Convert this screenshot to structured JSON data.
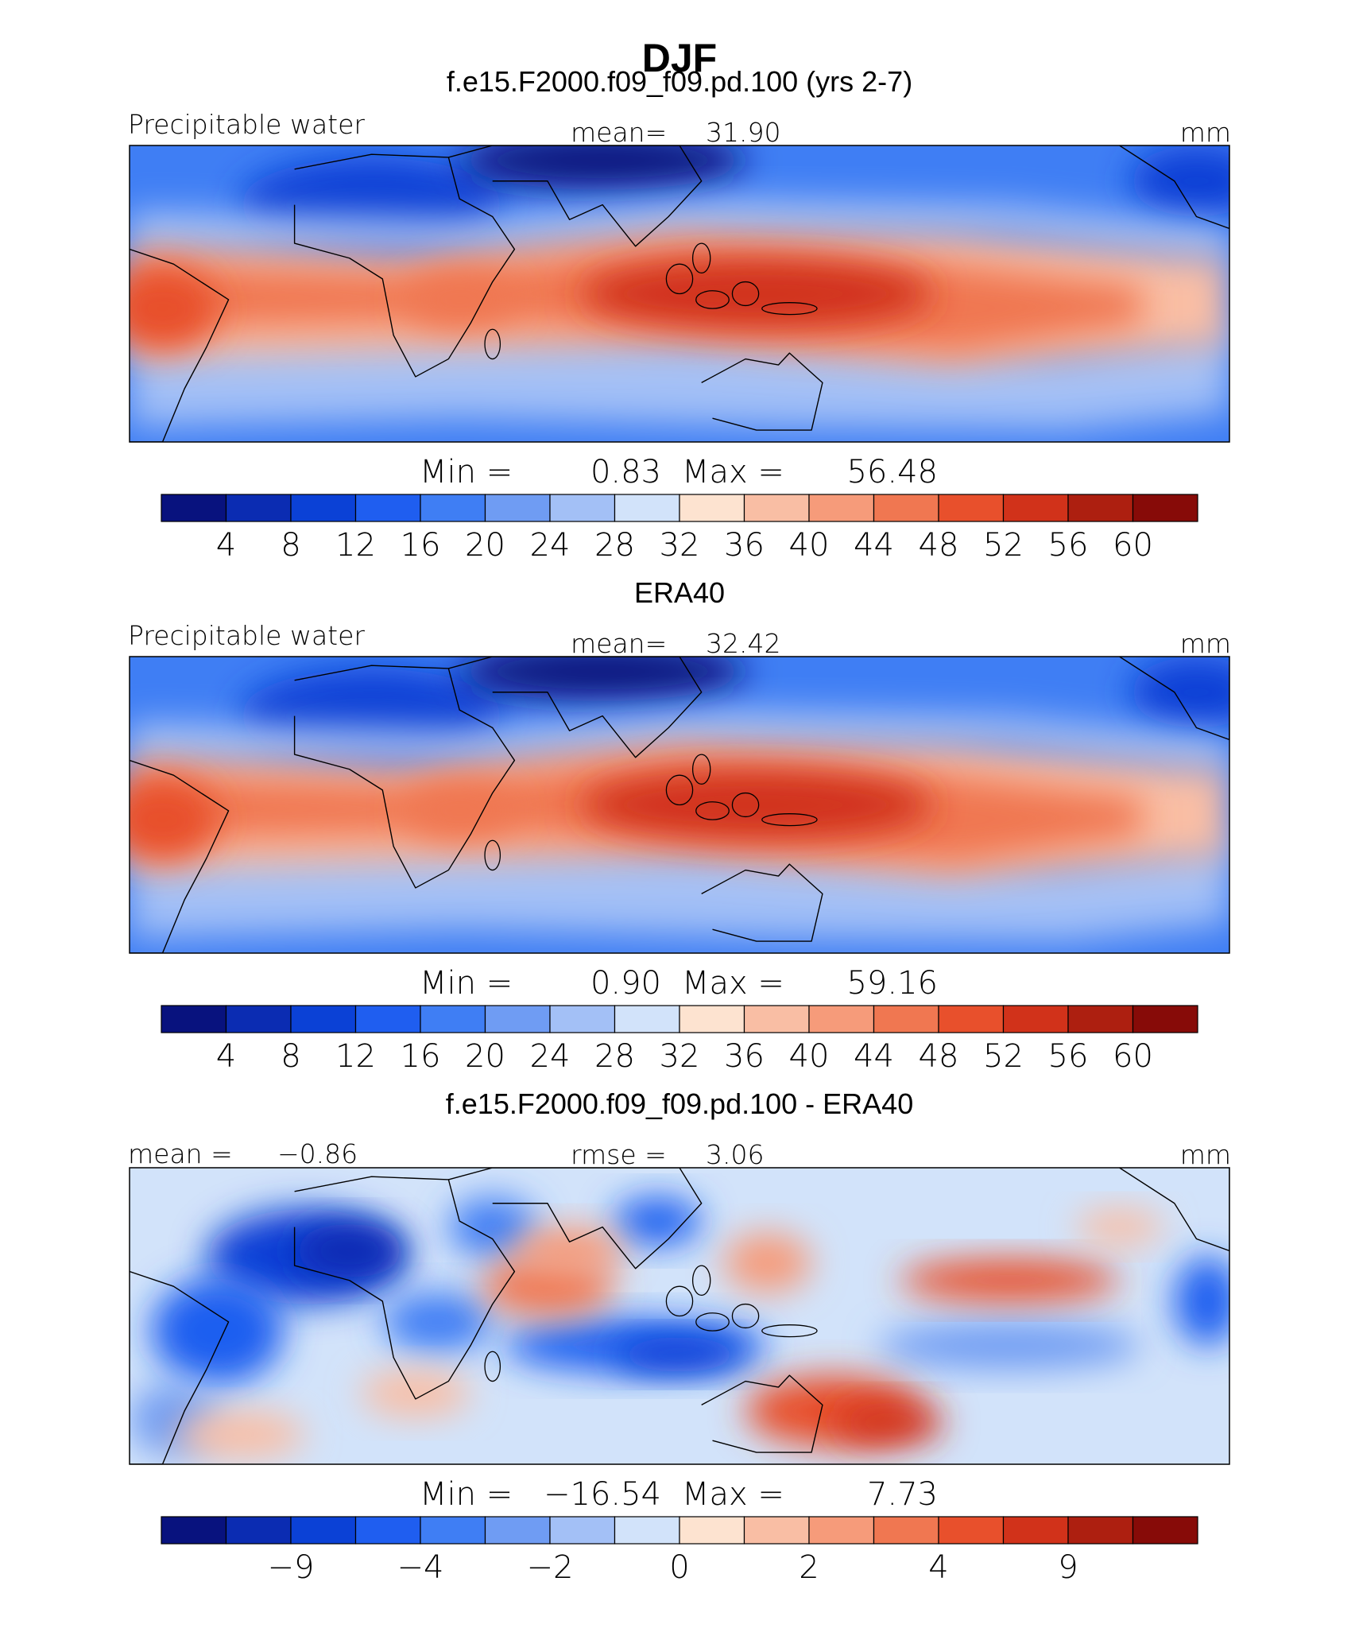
{
  "title": "DJF",
  "chart_data": [
    {
      "type": "heatmap",
      "title": "f.e15.F2000.f09_f09.pd.100 (yrs 2-7)",
      "variable": "Precipitable water",
      "units": "mm",
      "stat_left_label": "",
      "stat_left_value": "",
      "stat_mid_label": "mean=",
      "stat_mid_value": "31.90",
      "min_label": "Min =",
      "min": "0.83",
      "max_label": "Max =",
      "max": "56.48",
      "levels": [
        "4",
        "8",
        "12",
        "16",
        "20",
        "24",
        "28",
        "32",
        "36",
        "40",
        "44",
        "48",
        "52",
        "56",
        "60"
      ],
      "colors": [
        "#08127e",
        "#0b2cb2",
        "#0b41d6",
        "#1f5ef0",
        "#3f7ef4",
        "#6f9cf3",
        "#a3c0f6",
        "#d2e3fa",
        "#fde3d0",
        "#f9bea4",
        "#f69b7a",
        "#f07751",
        "#e8502c",
        "#d1321a",
        "#ad1f10",
        "#870b08"
      ],
      "tick_labels": [
        "4",
        "8",
        "12",
        "16",
        "20",
        "24",
        "28",
        "32",
        "36",
        "40",
        "44",
        "48",
        "52",
        "56",
        "60"
      ]
    },
    {
      "type": "heatmap",
      "title": "ERA40",
      "variable": "Precipitable water",
      "units": "mm",
      "stat_left_label": "",
      "stat_left_value": "",
      "stat_mid_label": "mean=",
      "stat_mid_value": "32.42",
      "min_label": "Min =",
      "min": "0.90",
      "max_label": "Max =",
      "max": "59.16",
      "levels": [
        "4",
        "8",
        "12",
        "16",
        "20",
        "24",
        "28",
        "32",
        "36",
        "40",
        "44",
        "48",
        "52",
        "56",
        "60"
      ],
      "colors": [
        "#08127e",
        "#0b2cb2",
        "#0b41d6",
        "#1f5ef0",
        "#3f7ef4",
        "#6f9cf3",
        "#a3c0f6",
        "#d2e3fa",
        "#fde3d0",
        "#f9bea4",
        "#f69b7a",
        "#f07751",
        "#e8502c",
        "#d1321a",
        "#ad1f10",
        "#870b08"
      ],
      "tick_labels": [
        "4",
        "8",
        "12",
        "16",
        "20",
        "24",
        "28",
        "32",
        "36",
        "40",
        "44",
        "48",
        "52",
        "56",
        "60"
      ]
    },
    {
      "type": "heatmap",
      "title": "f.e15.F2000.f09_f09.pd.100 - ERA40",
      "variable": "",
      "units": "mm",
      "stat_left_label": "mean =",
      "stat_left_value": "−0.86",
      "stat_mid_label": "rmse =",
      "stat_mid_value": "3.06",
      "min_label": "Min =",
      "min": "−16.54",
      "max_label": "Max =",
      "max": "7.73",
      "levels": [
        "-12",
        "-9",
        "-6",
        "-4",
        "-3",
        "-2",
        "-1",
        "0",
        "1",
        "2",
        "3",
        "4",
        "6",
        "9",
        "12"
      ],
      "colors": [
        "#08127e",
        "#0b2cb2",
        "#0b41d6",
        "#1f5ef0",
        "#3f7ef4",
        "#6f9cf3",
        "#a3c0f6",
        "#d2e3fa",
        "#fde3d0",
        "#f9bea4",
        "#f69b7a",
        "#f07751",
        "#e8502c",
        "#d1321a",
        "#ad1f10",
        "#870b08"
      ],
      "tick_labels": [
        "",
        "−9",
        "",
        "−4",
        "",
        "−2",
        "",
        "0",
        "",
        "2",
        "",
        "4",
        "",
        "9",
        ""
      ]
    }
  ]
}
